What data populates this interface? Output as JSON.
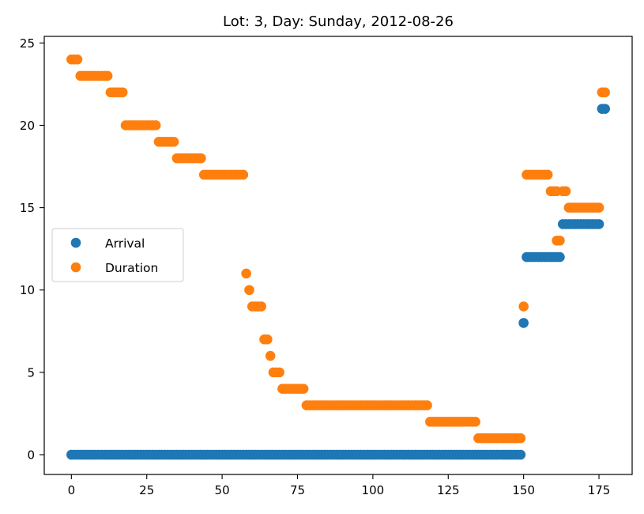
{
  "chart_data": {
    "type": "scatter",
    "title": "Lot: 3, Day: Sunday, 2012-08-26",
    "xlabel": "",
    "ylabel": "",
    "xlim": [
      -9,
      186
    ],
    "ylim": [
      -1.2,
      25.4
    ],
    "xticks": [
      0,
      25,
      50,
      75,
      100,
      125,
      150,
      175
    ],
    "yticks": [
      0,
      5,
      10,
      15,
      20,
      25
    ],
    "grid": false,
    "legend_position": "center-left",
    "series": [
      {
        "name": "Arrival",
        "color": "#1f77b4",
        "runs": [
          {
            "x_start": 0,
            "x_end": 149,
            "y": 0
          },
          {
            "x_start": 150,
            "x_end": 150,
            "y": 8
          },
          {
            "x_start": 151,
            "x_end": 162,
            "y": 12
          },
          {
            "x_start": 163,
            "x_end": 175,
            "y": 14
          },
          {
            "x_start": 176,
            "x_end": 177,
            "y": 21
          }
        ]
      },
      {
        "name": "Duration",
        "color": "#ff7f0e",
        "runs": [
          {
            "x_start": 0,
            "x_end": 2,
            "y": 24
          },
          {
            "x_start": 3,
            "x_end": 12,
            "y": 23
          },
          {
            "x_start": 13,
            "x_end": 17,
            "y": 22
          },
          {
            "x_start": 18,
            "x_end": 28,
            "y": 20
          },
          {
            "x_start": 29,
            "x_end": 34,
            "y": 19
          },
          {
            "x_start": 35,
            "x_end": 43,
            "y": 18
          },
          {
            "x_start": 44,
            "x_end": 57,
            "y": 17
          },
          {
            "x_start": 58,
            "x_end": 58,
            "y": 11
          },
          {
            "x_start": 59,
            "x_end": 59,
            "y": 10
          },
          {
            "x_start": 60,
            "x_end": 63,
            "y": 9
          },
          {
            "x_start": 64,
            "x_end": 65,
            "y": 7
          },
          {
            "x_start": 66,
            "x_end": 66,
            "y": 6
          },
          {
            "x_start": 67,
            "x_end": 69,
            "y": 5
          },
          {
            "x_start": 70,
            "x_end": 77,
            "y": 4
          },
          {
            "x_start": 78,
            "x_end": 118,
            "y": 3
          },
          {
            "x_start": 119,
            "x_end": 134,
            "y": 2
          },
          {
            "x_start": 135,
            "x_end": 149,
            "y": 1
          },
          {
            "x_start": 150,
            "x_end": 150,
            "y": 9
          },
          {
            "x_start": 151,
            "x_end": 158,
            "y": 17
          },
          {
            "x_start": 159,
            "x_end": 161,
            "y": 16
          },
          {
            "x_start": 161,
            "x_end": 162,
            "y": 13
          },
          {
            "x_start": 163,
            "x_end": 164,
            "y": 16
          },
          {
            "x_start": 165,
            "x_end": 175,
            "y": 15
          },
          {
            "x_start": 176,
            "x_end": 177,
            "y": 22
          }
        ]
      }
    ]
  }
}
